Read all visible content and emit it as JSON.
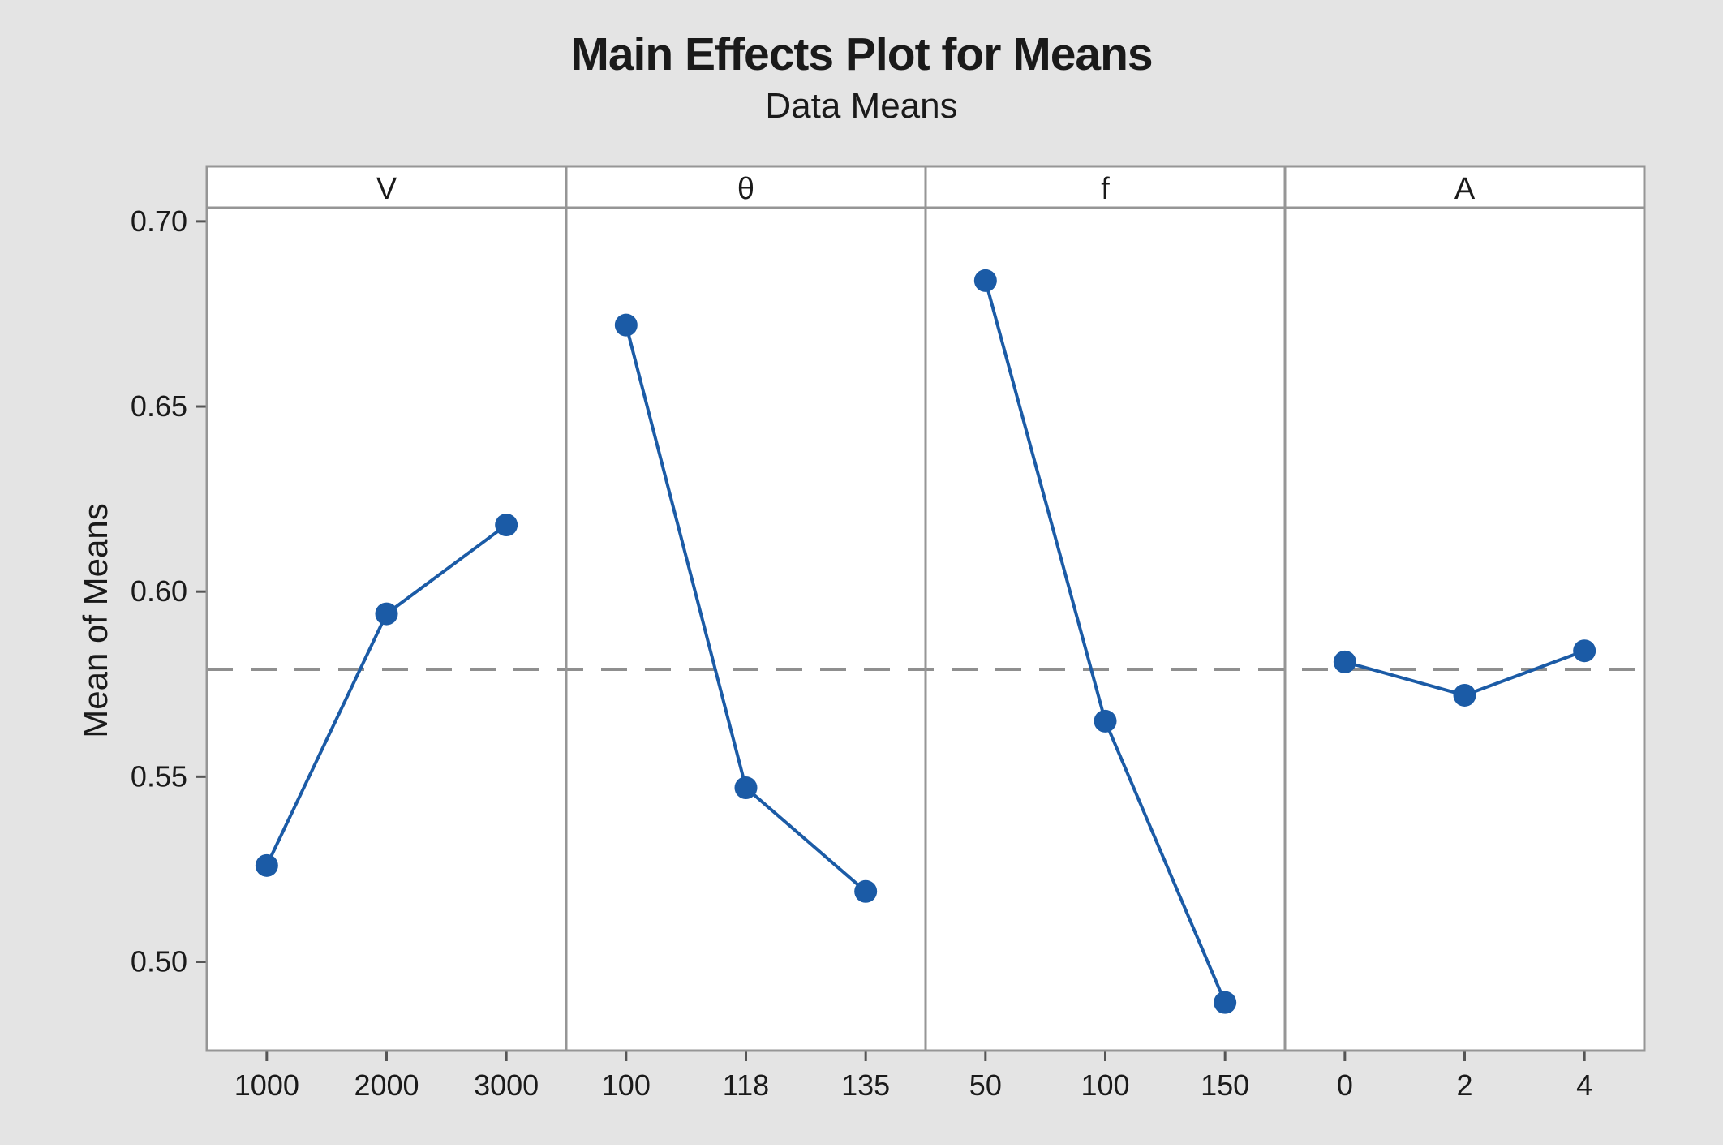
{
  "title": "Main Effects Plot for Means",
  "subtitle": "Data Means",
  "ylabel": "Mean of Means",
  "chart_data": {
    "type": "line",
    "title": "Main Effects Plot for Means",
    "subtitle": "Data Means",
    "ylabel": "Mean of Means",
    "panels": [
      {
        "factor": "V",
        "categories": [
          "1000",
          "2000",
          "3000"
        ],
        "values": [
          0.526,
          0.594,
          0.618
        ]
      },
      {
        "factor": "θ",
        "categories": [
          "100",
          "118",
          "135"
        ],
        "values": [
          0.672,
          0.547,
          0.519
        ]
      },
      {
        "factor": "f",
        "categories": [
          "50",
          "100",
          "150"
        ],
        "values": [
          0.684,
          0.565,
          0.489
        ]
      },
      {
        "factor": "A",
        "categories": [
          "0",
          "2",
          "4"
        ],
        "values": [
          0.581,
          0.572,
          0.584
        ]
      }
    ],
    "reference_line": 0.579,
    "yticks": [
      0.7,
      0.65,
      0.6,
      0.55,
      0.5
    ],
    "ylim": [
      0.476,
      0.7037
    ],
    "grid": false,
    "legend": "none",
    "marker": "circle",
    "colors": {
      "line": "#1b5ba6",
      "marker": "#1b5ba6",
      "reference": "#8f8f8f",
      "panel_border": "#969696",
      "tick": "#555555",
      "background": "#e4e4e4",
      "panel_bg": "#ffffff",
      "text": "#1a1a1a"
    }
  }
}
